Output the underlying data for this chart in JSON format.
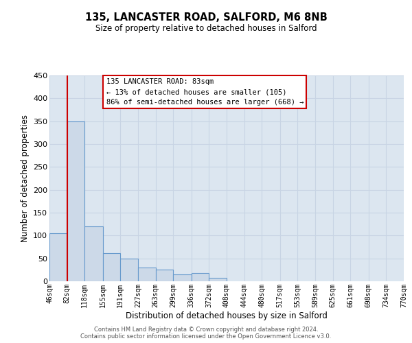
{
  "title_line1": "135, LANCASTER ROAD, SALFORD, M6 8NB",
  "title_line2": "Size of property relative to detached houses in Salford",
  "xlabel": "Distribution of detached houses by size in Salford",
  "ylabel": "Number of detached properties",
  "bin_edges": [
    46,
    82,
    118,
    155,
    191,
    227,
    263,
    299,
    336,
    372,
    408,
    444,
    480,
    517,
    553,
    589,
    625,
    661,
    698,
    734,
    770
  ],
  "bar_heights": [
    105,
    350,
    120,
    62,
    50,
    30,
    26,
    15,
    18,
    8,
    0,
    0,
    0,
    0,
    0,
    0,
    0,
    0,
    0,
    0
  ],
  "bar_color": "#ccd9e8",
  "bar_edgecolor": "#6699cc",
  "property_line_x": 83,
  "property_line_color": "#cc0000",
  "ylim": [
    0,
    450
  ],
  "yticks": [
    0,
    50,
    100,
    150,
    200,
    250,
    300,
    350,
    400,
    450
  ],
  "annotation_title": "135 LANCASTER ROAD: 83sqm",
  "annotation_line1": "← 13% of detached houses are smaller (105)",
  "annotation_line2": "86% of semi-detached houses are larger (668) →",
  "annotation_box_color": "#cc0000",
  "grid_color": "#c8d4e4",
  "background_color": "#dce6f0",
  "footer_line1": "Contains HM Land Registry data © Crown copyright and database right 2024.",
  "footer_line2": "Contains public sector information licensed under the Open Government Licence v3.0."
}
